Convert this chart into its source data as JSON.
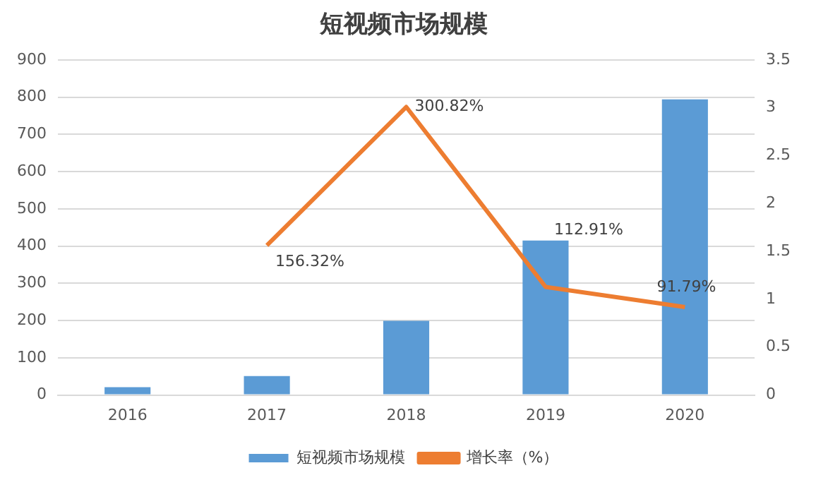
{
  "chart_data": {
    "type": "bar",
    "title": "短视频市场规模",
    "categories": [
      "2016",
      "2017",
      "2018",
      "2019",
      "2020"
    ],
    "series": [
      {
        "name": "短视频市场规模",
        "color": "#5b9bd5",
        "values": [
          21,
          51,
          199,
          415,
          794
        ]
      },
      {
        "name": "增长率（%）",
        "type": "line",
        "axis": "y2",
        "color": "#ed7d31",
        "values": [
          null,
          1.5632,
          3.0082,
          1.1291,
          0.9179
        ],
        "value_labels": [
          null,
          "156.32%",
          "300.82%",
          "112.91%",
          "91.79%"
        ]
      }
    ],
    "ylim": [
      0,
      900
    ],
    "yticks": [
      0,
      100,
      200,
      300,
      400,
      500,
      600,
      700,
      800,
      900
    ],
    "y2lim": [
      0,
      3.5
    ],
    "y2ticks": [
      0,
      0.5,
      1,
      1.5,
      2,
      2.5,
      3,
      3.5
    ],
    "grid": "y",
    "legend": "bottom",
    "marker": "none"
  }
}
